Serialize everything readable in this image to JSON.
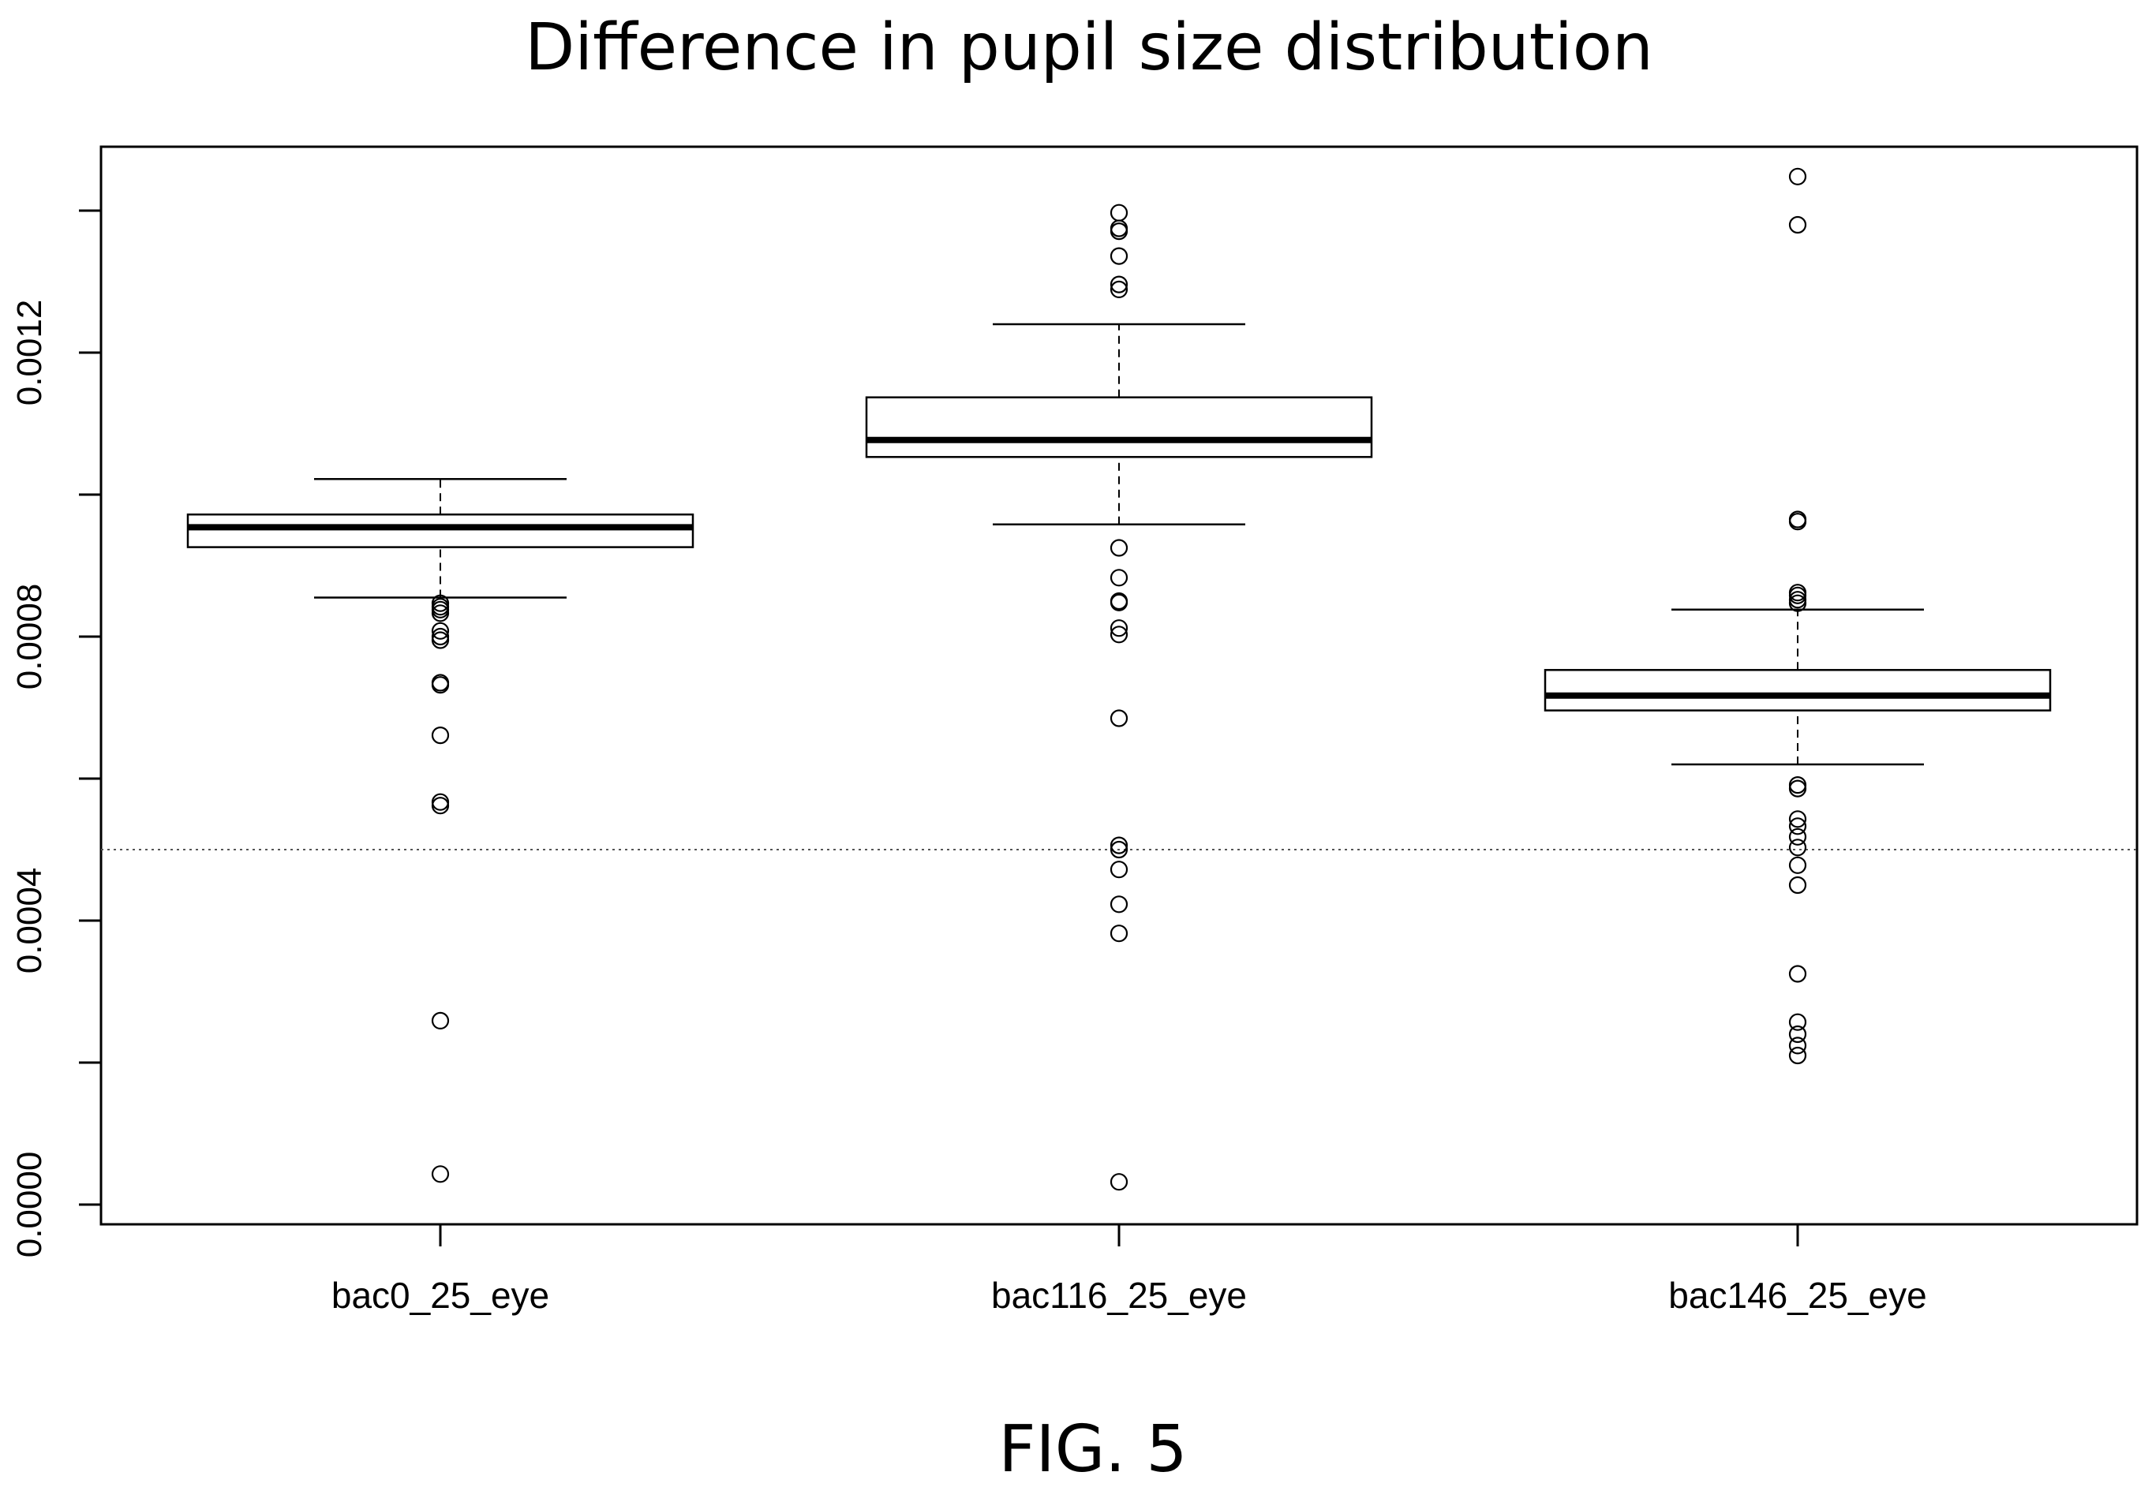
{
  "caption": "FIG. 5",
  "chart_data": {
    "type": "boxplot",
    "title": "Difference in pupil size distribution",
    "xlabel": "",
    "ylabel": "",
    "ylim": [
      -5e-05,
      0.00148
    ],
    "y_ticks": [
      {
        "value": 0.0,
        "label": "0.0000"
      },
      {
        "value": 0.0002,
        "label": ""
      },
      {
        "value": 0.0004,
        "label": "0.0004"
      },
      {
        "value": 0.0006,
        "label": ""
      },
      {
        "value": 0.0008,
        "label": "0.0008"
      },
      {
        "value": 0.001,
        "label": ""
      },
      {
        "value": 0.0012,
        "label": "0.0012"
      },
      {
        "value": 0.0014,
        "label": ""
      }
    ],
    "reference_line": {
      "value": 0.0005,
      "style": "dotted"
    },
    "grid": false,
    "categories": [
      "bac0_25_eye",
      "bac116_25_eye",
      "bac146_25_eye"
    ],
    "boxes": [
      {
        "name": "bac0_25_eye",
        "whisker_low": 0.000855,
        "q1": 0.000926,
        "median": 0.000954,
        "q3": 0.000972,
        "whisker_high": 0.001022,
        "outliers": [
          0.000847,
          0.000842,
          0.000838,
          0.000833,
          0.000808,
          0.0008,
          0.000795,
          0.000735,
          0.000732,
          0.000661,
          0.000567,
          0.000562,
          0.000259,
          4.3e-05
        ]
      },
      {
        "name": "bac116_25_eye",
        "whisker_low": 0.000958,
        "q1": 0.001053,
        "median": 0.001077,
        "q3": 0.001137,
        "whisker_high": 0.00124,
        "outliers": [
          0.001397,
          0.001375,
          0.001371,
          0.001336,
          0.001296,
          0.001289,
          0.000925,
          0.000883,
          0.00085,
          0.000848,
          0.000812,
          0.000803,
          0.000685,
          0.000506,
          0.0005,
          0.000472,
          0.000423,
          0.000382,
          3.2e-05
        ]
      },
      {
        "name": "bac146_25_eye",
        "whisker_low": 0.00062,
        "q1": 0.000696,
        "median": 0.000717,
        "q3": 0.000753,
        "whisker_high": 0.000838,
        "outliers": [
          0.001448,
          0.00138,
          0.000965,
          0.000962,
          0.000862,
          0.000858,
          0.000852,
          0.000847,
          0.000591,
          0.000586,
          0.000543,
          0.000533,
          0.000518,
          0.000503,
          0.000478,
          0.00045,
          0.000325,
          0.000257,
          0.00024,
          0.000224,
          0.00021
        ]
      }
    ]
  }
}
